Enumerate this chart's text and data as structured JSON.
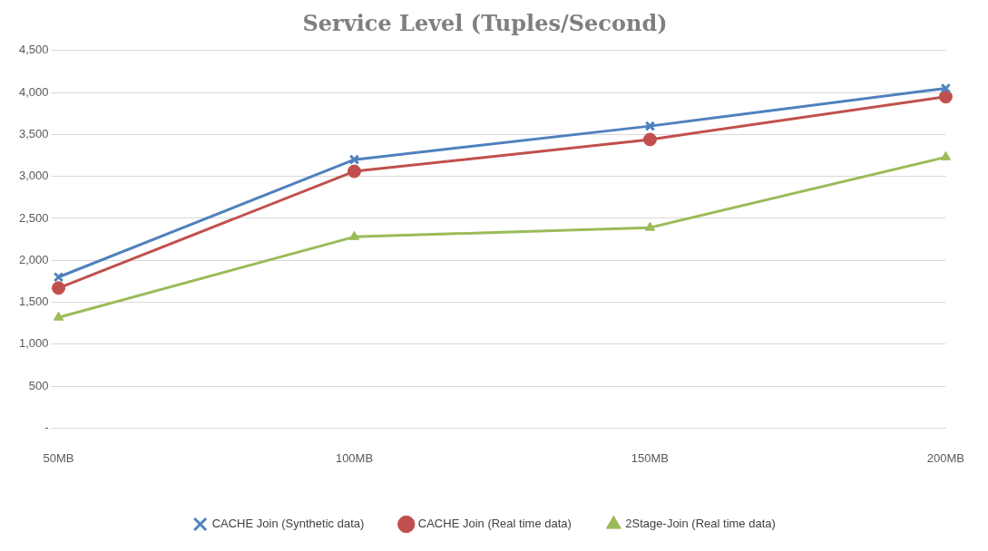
{
  "chart_data": {
    "type": "line",
    "title": "Service Level (Tuples/Second)",
    "categories": [
      "50MB",
      "100MB",
      "150MB",
      "200MB"
    ],
    "series": [
      {
        "name": "CACHE Join (Synthetic data)",
        "color": "#4f81bd",
        "marker": "cross",
        "values": [
          1800,
          3200,
          3600,
          4050
        ]
      },
      {
        "name": "CACHE Join (Real time data)",
        "color": "#c0504d",
        "marker": "circle",
        "values": [
          1670,
          3060,
          3440,
          3950
        ]
      },
      {
        "name": "2Stage-Join (Real time data)",
        "color": "#9bbb59",
        "marker": "triangle",
        "values": [
          1320,
          2280,
          2390,
          3230
        ]
      }
    ],
    "ylim": [
      0,
      4500
    ],
    "yticks": [
      {
        "value": 0,
        "label": "-"
      },
      {
        "value": 500,
        "label": "500"
      },
      {
        "value": 1000,
        "label": "1,000"
      },
      {
        "value": 1500,
        "label": "1,500"
      },
      {
        "value": 2000,
        "label": "2,000"
      },
      {
        "value": 2500,
        "label": "2,500"
      },
      {
        "value": 3000,
        "label": "3,000"
      },
      {
        "value": 3500,
        "label": "3,500"
      },
      {
        "value": 4000,
        "label": "4,000"
      },
      {
        "value": 4500,
        "label": "4,500"
      }
    ],
    "grid": "y",
    "legend": "bottom"
  }
}
